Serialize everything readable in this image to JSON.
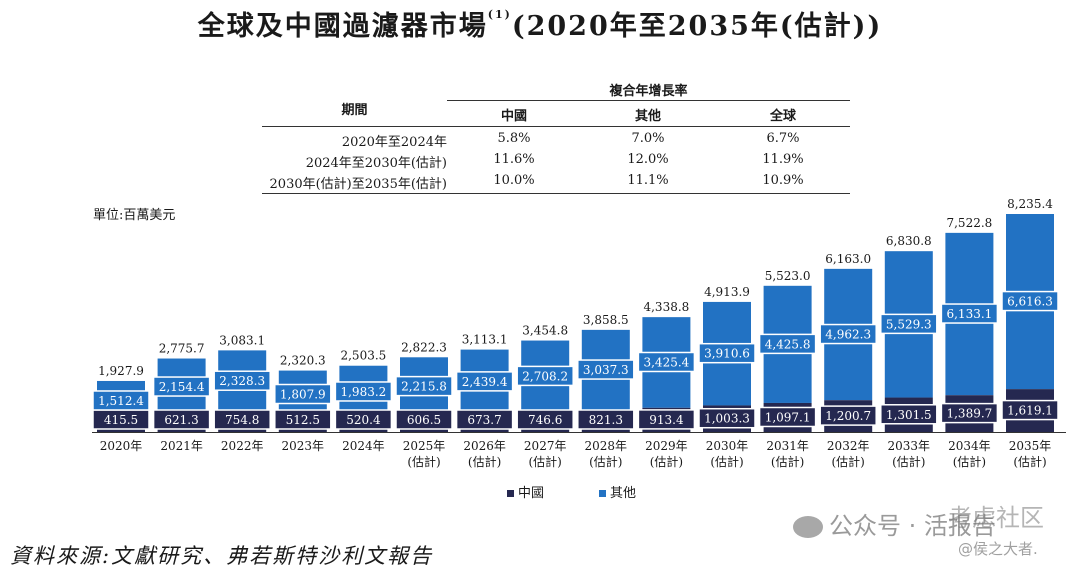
{
  "title": "全球及中國過濾器市場",
  "title_sup": "(1)",
  "title_rest": "(2020年至2035年(估計))",
  "cagr_table": {
    "header": "複合年增長率",
    "period_label": "期間",
    "columns": [
      "中國",
      "其他",
      "全球"
    ],
    "rows": [
      {
        "period": "2020年至2024年",
        "values": [
          "5.8%",
          "7.0%",
          "6.7%"
        ]
      },
      {
        "period": "2024年至2030年(估計)",
        "values": [
          "11.6%",
          "12.0%",
          "11.9%"
        ]
      },
      {
        "period": "2030年(估計)至2035年(估計)",
        "values": [
          "10.0%",
          "11.1%",
          "10.9%"
        ]
      }
    ]
  },
  "unit": "單位:百萬美元",
  "chart_data": {
    "type": "bar",
    "stacked": true,
    "categories": [
      "2020年",
      "2021年",
      "2022年",
      "2023年",
      "2024年",
      "2025年",
      "2026年",
      "2027年",
      "2028年",
      "2029年",
      "2030年",
      "2031年",
      "2032年",
      "2033年",
      "2034年",
      "2035年"
    ],
    "category_sub": [
      "",
      "",
      "",
      "",
      "",
      "(估計)",
      "(估計)",
      "(估計)",
      "(估計)",
      "(估計)",
      "(估計)",
      "(估計)",
      "(估計)",
      "(估計)",
      "(估計)",
      "(估計)"
    ],
    "series": [
      {
        "name": "中國",
        "color": "#252850",
        "values": [
          415.5,
          621.3,
          754.8,
          512.5,
          520.4,
          606.5,
          673.7,
          746.6,
          821.3,
          913.4,
          1003.3,
          1097.1,
          1200.7,
          1301.5,
          1389.7,
          1619.1
        ],
        "labels": [
          "415.5",
          "621.3",
          "754.8",
          "512.5",
          "520.4",
          "606.5",
          "673.7",
          "746.6",
          "821.3",
          "913.4",
          "1,003.3",
          "1,097.1",
          "1,200.7",
          "1,301.5",
          "1,389.7",
          "1,619.1"
        ]
      },
      {
        "name": "其他",
        "color": "#2272c3",
        "values": [
          1512.4,
          2154.4,
          2328.3,
          1807.9,
          1983.2,
          2215.8,
          2439.4,
          2708.2,
          3037.3,
          3425.4,
          3910.6,
          4425.8,
          4962.3,
          5529.3,
          6133.1,
          6616.3
        ],
        "labels": [
          "1,512.4",
          "2,154.4",
          "2,328.3",
          "1,807.9",
          "1,983.2",
          "2,215.8",
          "2,439.4",
          "2,708.2",
          "3,037.3",
          "3,425.4",
          "3,910.6",
          "4,425.8",
          "4,962.3",
          "5,529.3",
          "6,133.1",
          "6,616.3"
        ]
      }
    ],
    "totals": [
      1927.9,
      2775.7,
      3083.1,
      2320.3,
      2503.5,
      2822.3,
      3113.1,
      3454.8,
      3858.5,
      4338.8,
      4913.9,
      5523.0,
      6163.0,
      6830.8,
      7522.8,
      8235.4
    ],
    "total_labels": [
      "1,927.9",
      "2,775.7",
      "3,083.1",
      "2,320.3",
      "2,503.5",
      "2,822.3",
      "3,113.1",
      "3,454.8",
      "3,858.5",
      "4,338.8",
      "4,913.9",
      "5,523.0",
      "6,163.0",
      "6,830.8",
      "7,522.8",
      "8,235.4"
    ],
    "legend_position": "bottom",
    "grid": false
  },
  "legend": [
    {
      "label": "中國",
      "color": "#252850"
    },
    {
      "label": "其他",
      "color": "#2272c3"
    }
  ],
  "source": "資料來源:文獻研究、弗若斯特沙利文報告",
  "watermark": {
    "account": "公众号 · 活报告",
    "brand": "考虑社区",
    "handle": "@侯之大者."
  }
}
